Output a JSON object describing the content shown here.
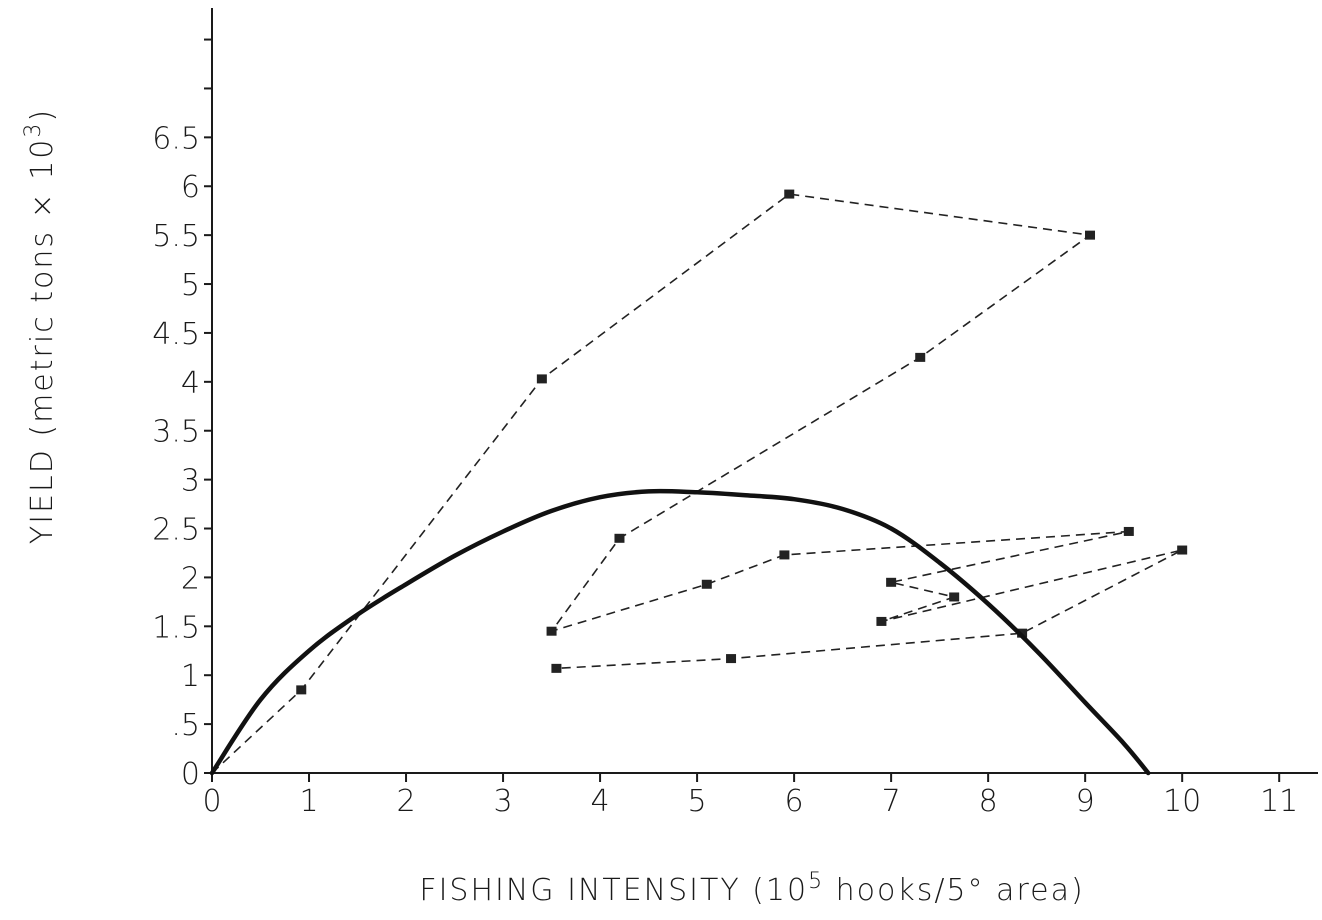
{
  "chart_data": {
    "type": "scatter",
    "xlabel": {
      "pre": "FISHING  INTENSITY (10",
      "sup": "5",
      "post": " hooks/5° area)"
    },
    "ylabel": {
      "pre": "YIELD (metric  tons × 10",
      "sup": "3",
      "post": ")"
    },
    "xlim": [
      0,
      11.4
    ],
    "ylim": [
      0,
      7.7
    ],
    "x_ticks": [
      {
        "value": 0,
        "label": "0"
      },
      {
        "value": 1,
        "label": "1"
      },
      {
        "value": 2,
        "label": "2"
      },
      {
        "value": 3,
        "label": "3"
      },
      {
        "value": 4,
        "label": "4"
      },
      {
        "value": 5,
        "label": "5"
      },
      {
        "value": 6,
        "label": "6"
      },
      {
        "value": 7,
        "label": "7"
      },
      {
        "value": 8,
        "label": "8"
      },
      {
        "value": 9,
        "label": "9"
      },
      {
        "value": 10,
        "label": "10"
      },
      {
        "value": 11,
        "label": "11"
      }
    ],
    "y_ticks": [
      {
        "value": 0,
        "label": "0"
      },
      {
        "value": 0.5,
        "label": ".5"
      },
      {
        "value": 1,
        "label": "1"
      },
      {
        "value": 1.5,
        "label": "1.5"
      },
      {
        "value": 2,
        "label": "2"
      },
      {
        "value": 2.5,
        "label": "2.5"
      },
      {
        "value": 3,
        "label": "3"
      },
      {
        "value": 3.5,
        "label": "3.5"
      },
      {
        "value": 4,
        "label": "4"
      },
      {
        "value": 4.5,
        "label": "4.5"
      },
      {
        "value": 5,
        "label": "5"
      },
      {
        "value": 5.5,
        "label": "5.5"
      },
      {
        "value": 6,
        "label": "6"
      },
      {
        "value": 6.5,
        "label": "6.5"
      },
      {
        "value": 7,
        "label": ""
      },
      {
        "value": 7.5,
        "label": ""
      }
    ],
    "grid": false,
    "series": [
      {
        "style": "dashed-line-with-square-markers",
        "color": "#222222",
        "points": [
          {
            "x": 0.0,
            "y": 0.0
          },
          {
            "x": 0.92,
            "y": 0.85
          },
          {
            "x": 3.4,
            "y": 4.03
          },
          {
            "x": 5.95,
            "y": 5.92
          },
          {
            "x": 9.05,
            "y": 5.5
          },
          {
            "x": 7.3,
            "y": 4.25
          },
          {
            "x": 4.2,
            "y": 2.4
          },
          {
            "x": 3.5,
            "y": 1.45
          },
          {
            "x": 5.1,
            "y": 1.93
          },
          {
            "x": 5.9,
            "y": 2.23
          },
          {
            "x": 9.45,
            "y": 2.47
          },
          {
            "x": 7.0,
            "y": 1.95
          },
          {
            "x": 7.65,
            "y": 1.8
          },
          {
            "x": 6.9,
            "y": 1.55
          },
          {
            "x": 10.0,
            "y": 2.28
          },
          {
            "x": 8.35,
            "y": 1.43
          },
          {
            "x": 5.35,
            "y": 1.17
          },
          {
            "x": 3.55,
            "y": 1.07
          }
        ]
      },
      {
        "style": "solid-curve",
        "color": "#111111",
        "points": [
          {
            "x": 0.0,
            "y": 0.0
          },
          {
            "x": 0.5,
            "y": 0.75
          },
          {
            "x": 1.0,
            "y": 1.25
          },
          {
            "x": 1.5,
            "y": 1.62
          },
          {
            "x": 2.0,
            "y": 1.93
          },
          {
            "x": 2.5,
            "y": 2.22
          },
          {
            "x": 3.0,
            "y": 2.47
          },
          {
            "x": 3.5,
            "y": 2.68
          },
          {
            "x": 4.0,
            "y": 2.82
          },
          {
            "x": 4.5,
            "y": 2.88
          },
          {
            "x": 5.0,
            "y": 2.87
          },
          {
            "x": 5.5,
            "y": 2.84
          },
          {
            "x": 6.0,
            "y": 2.8
          },
          {
            "x": 6.5,
            "y": 2.7
          },
          {
            "x": 7.0,
            "y": 2.5
          },
          {
            "x": 7.5,
            "y": 2.15
          },
          {
            "x": 8.0,
            "y": 1.73
          },
          {
            "x": 8.5,
            "y": 1.25
          },
          {
            "x": 9.0,
            "y": 0.72
          },
          {
            "x": 9.4,
            "y": 0.3
          },
          {
            "x": 9.65,
            "y": 0.0
          }
        ]
      }
    ]
  }
}
